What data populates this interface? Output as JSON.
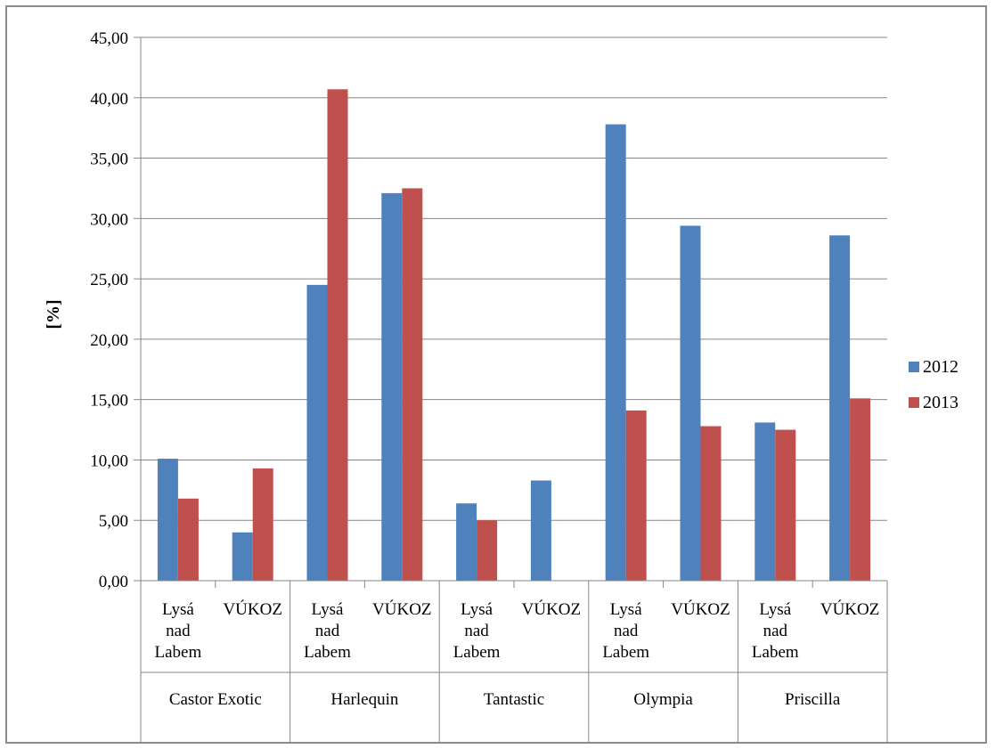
{
  "chart_data": {
    "type": "bar",
    "title": "",
    "xlabel": "",
    "ylabel": "[%]",
    "ylim": [
      0,
      45
    ],
    "ytick_step": 5,
    "ytick_labels": [
      "0,00",
      "5,00",
      "10,00",
      "15,00",
      "20,00",
      "25,00",
      "30,00",
      "35,00",
      "40,00",
      "45,00"
    ],
    "grid": true,
    "legend_position": "right",
    "groups": [
      "Castor Exotic",
      "Harlequin",
      "Tantastic",
      "Olympia",
      "Priscilla"
    ],
    "categories": [
      [
        "Lysá",
        "nad",
        "Labem"
      ],
      [
        "VÚKOZ"
      ],
      [
        "Lysá",
        "nad",
        "Labem"
      ],
      [
        "VÚKOZ"
      ],
      [
        "Lysá",
        "nad",
        "Labem"
      ],
      [
        "VÚKOZ"
      ],
      [
        "Lysá",
        "nad",
        "Labem"
      ],
      [
        "VÚKOZ"
      ],
      [
        "Lysá",
        "nad",
        "Labem"
      ],
      [
        "VÚKOZ"
      ]
    ],
    "series": [
      {
        "name": "2012",
        "color": "#4f81bd",
        "values": [
          10.1,
          4.0,
          24.5,
          32.1,
          6.4,
          8.3,
          37.8,
          29.4,
          13.1,
          28.6
        ]
      },
      {
        "name": "2013",
        "color": "#c0504d",
        "values": [
          6.8,
          9.3,
          40.7,
          32.5,
          5.0,
          0,
          14.1,
          12.8,
          12.5,
          15.1
        ]
      }
    ]
  }
}
